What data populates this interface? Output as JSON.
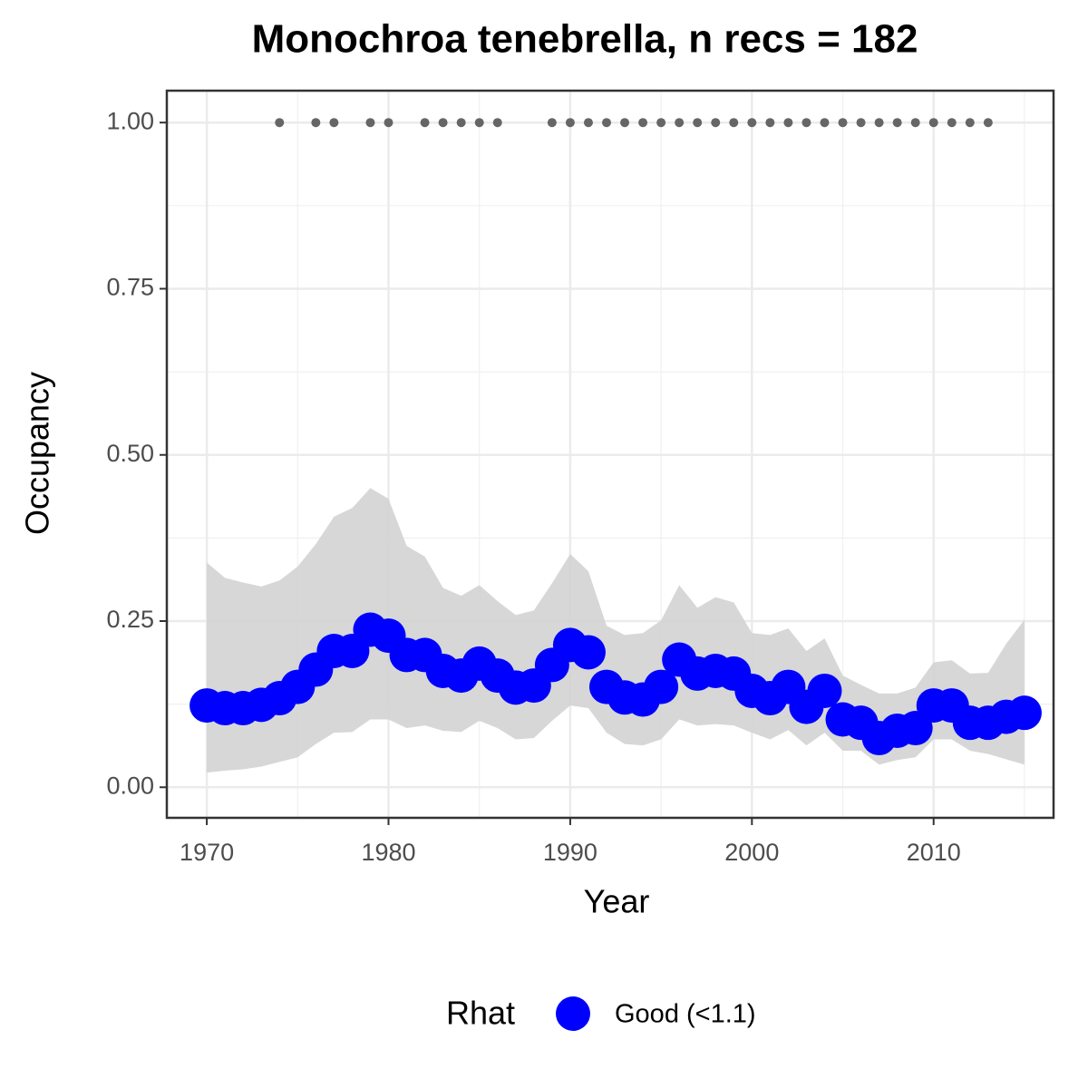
{
  "chart_data": {
    "type": "line",
    "title": "Monochroa tenebrella, n recs = 182",
    "x_label": "Year",
    "y_label": "Occupancy",
    "legend_title": "Rhat",
    "x": [
      1970,
      1971,
      1972,
      1973,
      1974,
      1975,
      1976,
      1977,
      1978,
      1979,
      1980,
      1981,
      1982,
      1983,
      1984,
      1985,
      1986,
      1987,
      1988,
      1989,
      1990,
      1991,
      1992,
      1993,
      1994,
      1995,
      1996,
      1997,
      1998,
      1999,
      2000,
      2001,
      2002,
      2003,
      2004,
      2005,
      2006,
      2007,
      2008,
      2009,
      2010,
      2011,
      2012,
      2013,
      2014,
      2015
    ],
    "series": [
      {
        "name": "Good (<1.1)",
        "color": "#0000ff",
        "values": [
          0.123,
          0.119,
          0.119,
          0.124,
          0.134,
          0.151,
          0.177,
          0.205,
          0.205,
          0.237,
          0.228,
          0.199,
          0.199,
          0.175,
          0.168,
          0.186,
          0.168,
          0.15,
          0.153,
          0.184,
          0.214,
          0.203,
          0.151,
          0.135,
          0.132,
          0.151,
          0.192,
          0.171,
          0.175,
          0.171,
          0.145,
          0.134,
          0.151,
          0.121,
          0.145,
          0.102,
          0.097,
          0.074,
          0.085,
          0.089,
          0.123,
          0.123,
          0.097,
          0.097,
          0.106,
          0.112
        ]
      }
    ],
    "band": {
      "color": "#d3d3d3",
      "upper": [
        0.338,
        0.315,
        0.308,
        0.302,
        0.311,
        0.332,
        0.366,
        0.407,
        0.42,
        0.45,
        0.434,
        0.363,
        0.347,
        0.3,
        0.288,
        0.304,
        0.28,
        0.259,
        0.266,
        0.307,
        0.351,
        0.325,
        0.243,
        0.229,
        0.232,
        0.251,
        0.304,
        0.27,
        0.286,
        0.278,
        0.232,
        0.229,
        0.239,
        0.205,
        0.224,
        0.168,
        0.154,
        0.141,
        0.141,
        0.15,
        0.188,
        0.191,
        0.171,
        0.172,
        0.216,
        0.252
      ],
      "lower": [
        0.022,
        0.025,
        0.027,
        0.031,
        0.038,
        0.045,
        0.065,
        0.082,
        0.083,
        0.102,
        0.102,
        0.089,
        0.093,
        0.085,
        0.083,
        0.1,
        0.089,
        0.072,
        0.074,
        0.1,
        0.123,
        0.119,
        0.082,
        0.065,
        0.063,
        0.072,
        0.102,
        0.093,
        0.095,
        0.093,
        0.082,
        0.072,
        0.086,
        0.063,
        0.082,
        0.055,
        0.055,
        0.034,
        0.041,
        0.045,
        0.072,
        0.072,
        0.055,
        0.05,
        0.042,
        0.034
      ]
    },
    "records": {
      "color": "#666666",
      "x": [
        1974,
        1976,
        1977,
        1979,
        1980,
        1982,
        1983,
        1984,
        1985,
        1986,
        1989,
        1990,
        1991,
        1992,
        1993,
        1994,
        1995,
        1996,
        1997,
        1998,
        1999,
        2000,
        2001,
        2002,
        2003,
        2004,
        2005,
        2006,
        2007,
        2008,
        2009,
        2010,
        2011,
        2012,
        2013
      ],
      "values": [
        1,
        1,
        1,
        1,
        1,
        1,
        1,
        1,
        1,
        1,
        1,
        1,
        1,
        1,
        1,
        1,
        1,
        1,
        1,
        1,
        1,
        1,
        1,
        1,
        1,
        1,
        1,
        1,
        1,
        1,
        1,
        1,
        1,
        1,
        1
      ]
    },
    "xlim": [
      1967.8,
      2016.6
    ],
    "ylim": [
      -0.046,
      1.048
    ],
    "xticks": [
      1970,
      1980,
      1990,
      2000,
      2010
    ],
    "yticks": [
      {
        "value": 0,
        "label": "0.00"
      },
      0.25,
      {
        "value": 0.5,
        "label": "0.50"
      },
      0.75,
      {
        "value": 1,
        "label": "1.00"
      }
    ],
    "xminor": [
      1975,
      1985,
      1995,
      2005,
      2015
    ],
    "yminor": [
      0.125,
      0.375,
      0.625,
      0.875
    ],
    "grid": true
  }
}
